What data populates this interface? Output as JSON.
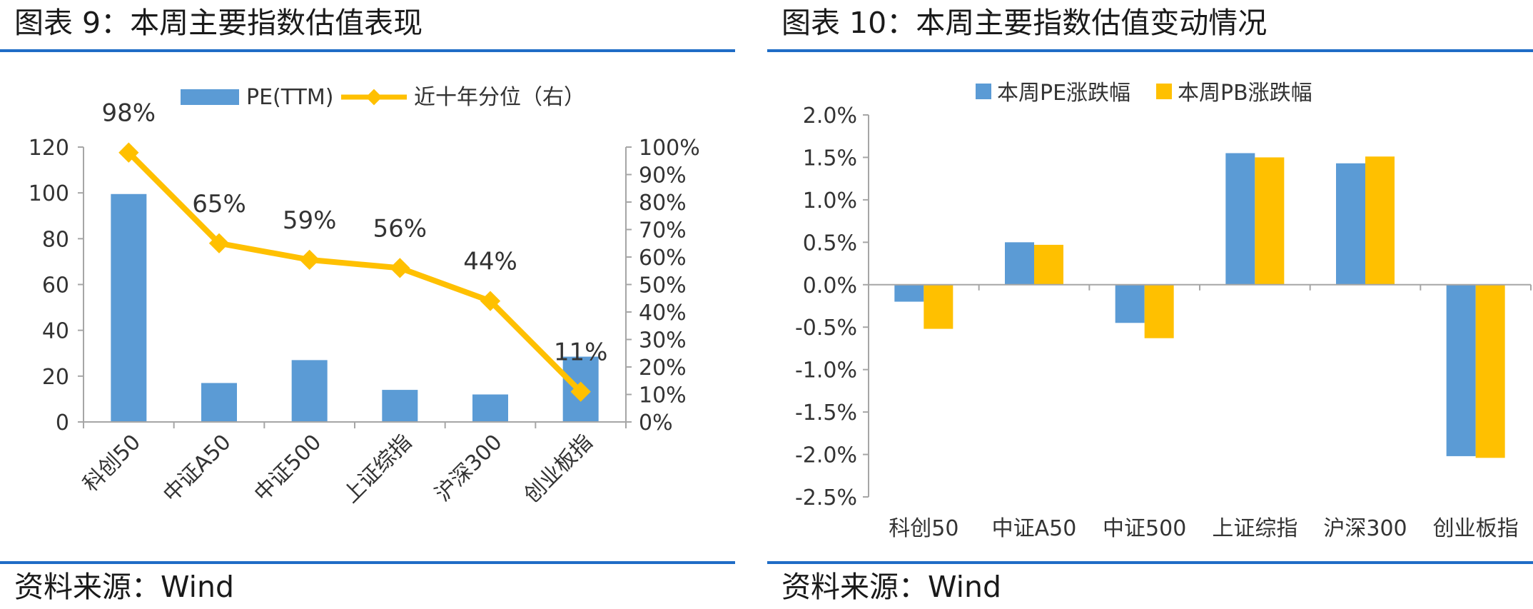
{
  "panels": [
    {
      "title": "图表 9：本周主要指数估值表现",
      "source": "资料来源：Wind"
    },
    {
      "title": "图表 10：本周主要指数估值变动情况",
      "source": "资料来源：Wind"
    }
  ],
  "colors": {
    "blue": "#5b9bd5",
    "gold": "#ffc000",
    "rule": "#1f6cc6",
    "axis": "#a6a6a6"
  },
  "chart_data": [
    {
      "type": "bar+line",
      "categories": [
        "科创50",
        "中证A50",
        "中证500",
        "上证综指",
        "沪深300",
        "创业板指"
      ],
      "series": [
        {
          "name": "PE(TTM)",
          "type": "bar",
          "axis": "left",
          "values": [
            99.5,
            17,
            27,
            14,
            12,
            28.5
          ]
        },
        {
          "name": "近十年分位（右）",
          "type": "line",
          "axis": "right",
          "values": [
            98,
            65,
            59,
            56,
            44,
            11
          ]
        }
      ],
      "data_labels": [
        "98%",
        "65%",
        "59%",
        "56%",
        "44%",
        "11%"
      ],
      "y_left": {
        "min": 0,
        "max": 120,
        "ticks": [
          "0",
          "20",
          "40",
          "60",
          "80",
          "100",
          "120"
        ]
      },
      "y_right": {
        "min": 0,
        "max": 100,
        "ticks": [
          "0%",
          "10%",
          "20%",
          "30%",
          "40%",
          "50%",
          "60%",
          "70%",
          "80%",
          "90%",
          "100%"
        ]
      },
      "legend": "top",
      "grid": false
    },
    {
      "type": "bar",
      "categories": [
        "科创50",
        "中证A50",
        "中证500",
        "上证综指",
        "沪深300",
        "创业板指"
      ],
      "series": [
        {
          "name": "本周PE涨跌幅",
          "values": [
            -0.2,
            0.5,
            -0.45,
            1.55,
            1.43,
            -2.02
          ]
        },
        {
          "name": "本周PB涨跌幅",
          "values": [
            -0.52,
            0.47,
            -0.63,
            1.5,
            1.51,
            -2.04
          ]
        }
      ],
      "y": {
        "min": -2.5,
        "max": 2.0,
        "ticks": [
          "-2.5%",
          "-2.0%",
          "-1.5%",
          "-1.0%",
          "-0.5%",
          "0.0%",
          "0.5%",
          "1.0%",
          "1.5%",
          "2.0%"
        ]
      },
      "legend": "top",
      "grid": false
    }
  ]
}
